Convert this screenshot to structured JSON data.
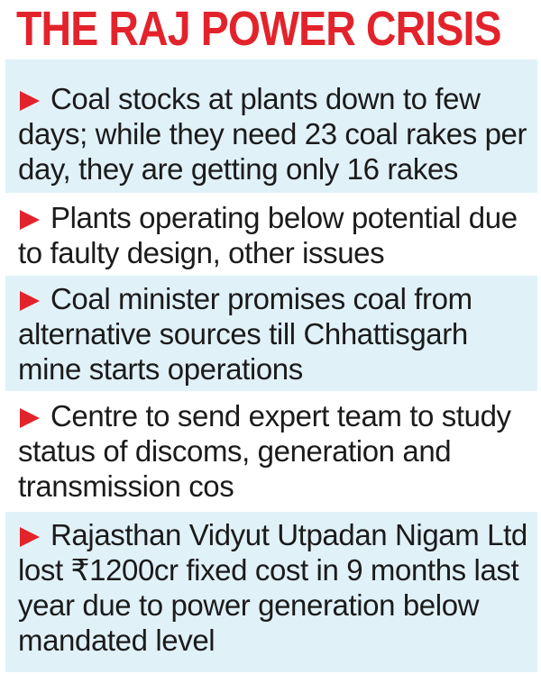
{
  "title": "THE RAJ POWER CRISIS",
  "colors": {
    "accent": "#e3232b",
    "shade": "#e0f1f8",
    "text": "#1b1b1b"
  },
  "bullets": [
    {
      "icon": "arrow-right-icon",
      "text": "Coal stocks at plants down to few days; while they need 23 coal rakes per day, they are getting only 16 rakes"
    },
    {
      "icon": "arrow-right-icon",
      "text": "Plants operating below potential due to faulty design, other issues"
    },
    {
      "icon": "arrow-right-icon",
      "text": "Coal minister promises coal from alternative sources till Chhattisgarh mine starts operations"
    },
    {
      "icon": "arrow-right-icon",
      "text": "Centre to send expert team to study status of discoms, generation and transmission cos"
    },
    {
      "icon": "arrow-right-icon",
      "text": "Rajasthan Vidyut Utpadan Nigam Ltd lost ₹1200cr fixed cost in 9 months last year due to power generation below mandated level"
    }
  ]
}
